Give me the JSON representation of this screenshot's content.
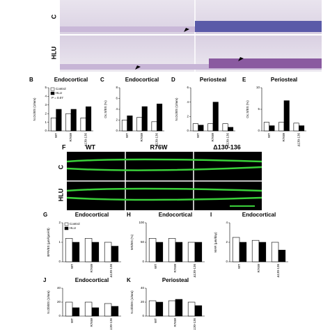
{
  "histology": {
    "rows": [
      "C",
      "HLU"
    ]
  },
  "fluorescence": {
    "panel": "F",
    "columns": [
      "WT",
      "R76W",
      "Δ130-136"
    ],
    "rows": [
      "C",
      "HLU"
    ]
  },
  "chart_data": [
    {
      "type": "bar",
      "panel": "B",
      "title": "Endocortical",
      "ylabel": "N.Oc/BS (1/mm)",
      "categories": [
        "WT",
        "R76W",
        "Δ130-136"
      ],
      "series": [
        {
          "name": "Control",
          "color": "#ffffff",
          "values": [
            1.5,
            2.0,
            1.5
          ]
        },
        {
          "name": "HLU",
          "color": "#000000",
          "values": [
            2.5,
            2.5,
            2.8
          ]
        }
      ],
      "ylim": [
        0,
        5
      ],
      "yticks": [
        0,
        1,
        2,
        3,
        4,
        5
      ],
      "legend": "upper left",
      "annotation": "P = 0.07"
    },
    {
      "type": "bar",
      "panel": "C",
      "title": "Endocortical",
      "ylabel": "Oc.S/BS (%)",
      "categories": [
        "WT",
        "R76W",
        "Δ130-136"
      ],
      "series": [
        {
          "name": "Control",
          "color": "#ffffff",
          "values": [
            2.0,
            2.5,
            1.7
          ]
        },
        {
          "name": "HLU",
          "color": "#000000",
          "values": [
            2.8,
            4.5,
            5.0
          ]
        }
      ],
      "ylim": [
        0,
        8
      ],
      "yticks": [
        0,
        2,
        4,
        6,
        8
      ]
    },
    {
      "type": "bar",
      "panel": "D",
      "title": "Periosteal",
      "ylabel": "N.Oc/BS (1/mm)",
      "categories": [
        "WT",
        "R76W",
        "Δ130-136"
      ],
      "series": [
        {
          "name": "Control",
          "color": "#ffffff",
          "values": [
            1.0,
            1.0,
            1.0
          ]
        },
        {
          "name": "HLU",
          "color": "#000000",
          "values": [
            0.8,
            4.0,
            0.5
          ]
        }
      ],
      "ylim": [
        0,
        6
      ],
      "yticks": [
        0,
        2,
        4,
        6
      ]
    },
    {
      "type": "bar",
      "panel": "E",
      "title": "Periosteal",
      "ylabel": "Oc.S/BS (%)",
      "categories": [
        "WT",
        "R76W",
        "Δ130-136"
      ],
      "series": [
        {
          "name": "Control",
          "color": "#ffffff",
          "values": [
            2.0,
            2.0,
            1.8
          ]
        },
        {
          "name": "HLU",
          "color": "#000000",
          "values": [
            1.2,
            7.0,
            1.2
          ]
        }
      ],
      "ylim": [
        0,
        10
      ],
      "yticks": [
        0,
        5,
        10
      ]
    },
    {
      "type": "bar",
      "panel": "G",
      "title": "Endocortical",
      "ylabel": "BFR/BS (μm³/μm²/d)",
      "categories": [
        "WT",
        "R76W",
        "Δ130-136"
      ],
      "series": [
        {
          "name": "Control",
          "color": "#ffffff",
          "values": [
            1.2,
            1.2,
            1.0
          ]
        },
        {
          "name": "HLU",
          "color": "#000000",
          "values": [
            1.0,
            1.0,
            0.8
          ]
        }
      ],
      "ylim": [
        0,
        2
      ],
      "yticks": [
        0,
        1,
        2
      ],
      "legend": "upper left"
    },
    {
      "type": "bar",
      "panel": "H",
      "title": "Endocortical",
      "ylabel": "MS/BS (%)",
      "categories": [
        "WT",
        "R76W",
        "Δ130-136"
      ],
      "series": [
        {
          "name": "Control",
          "color": "#ffffff",
          "values": [
            60,
            60,
            50
          ]
        },
        {
          "name": "HLU",
          "color": "#000000",
          "values": [
            50,
            50,
            50
          ]
        }
      ],
      "ylim": [
        0,
        100
      ],
      "yticks": [
        0,
        50,
        100
      ]
    },
    {
      "type": "bar",
      "panel": "I",
      "title": "Endocortical",
      "ylabel": "MAR (μm/day)",
      "categories": [
        "WT",
        "R76W",
        "Δ130-136"
      ],
      "series": [
        {
          "name": "Control",
          "color": "#ffffff",
          "values": [
            2.5,
            2.2,
            2.0
          ]
        },
        {
          "name": "HLU",
          "color": "#000000",
          "values": [
            2.0,
            2.0,
            1.2
          ]
        }
      ],
      "ylim": [
        0,
        4
      ],
      "yticks": [
        0,
        2,
        4
      ]
    },
    {
      "type": "bar",
      "panel": "J",
      "title": "Endocortical",
      "ylabel": "N.Ob/BS (1/mm)",
      "categories": [
        "WT",
        "R76W",
        "Δ130-136"
      ],
      "series": [
        {
          "name": "Control",
          "color": "#ffffff",
          "values": [
            20,
            20,
            18
          ]
        },
        {
          "name": "HLU",
          "color": "#000000",
          "values": [
            12,
            12,
            14
          ]
        }
      ],
      "ylim": [
        0,
        40
      ],
      "yticks": [
        0,
        20,
        40
      ]
    },
    {
      "type": "bar",
      "panel": "K",
      "title": "Periosteal",
      "ylabel": "N.Ob/BS (1/mm)",
      "categories": [
        "WT",
        "R76W",
        "Δ130-136"
      ],
      "series": [
        {
          "name": "Control",
          "color": "#ffffff",
          "values": [
            22,
            22,
            20
          ]
        },
        {
          "name": "HLU",
          "color": "#000000",
          "values": [
            20,
            24,
            15
          ]
        }
      ],
      "ylim": [
        0,
        40
      ],
      "yticks": [
        0,
        20,
        40
      ]
    }
  ]
}
